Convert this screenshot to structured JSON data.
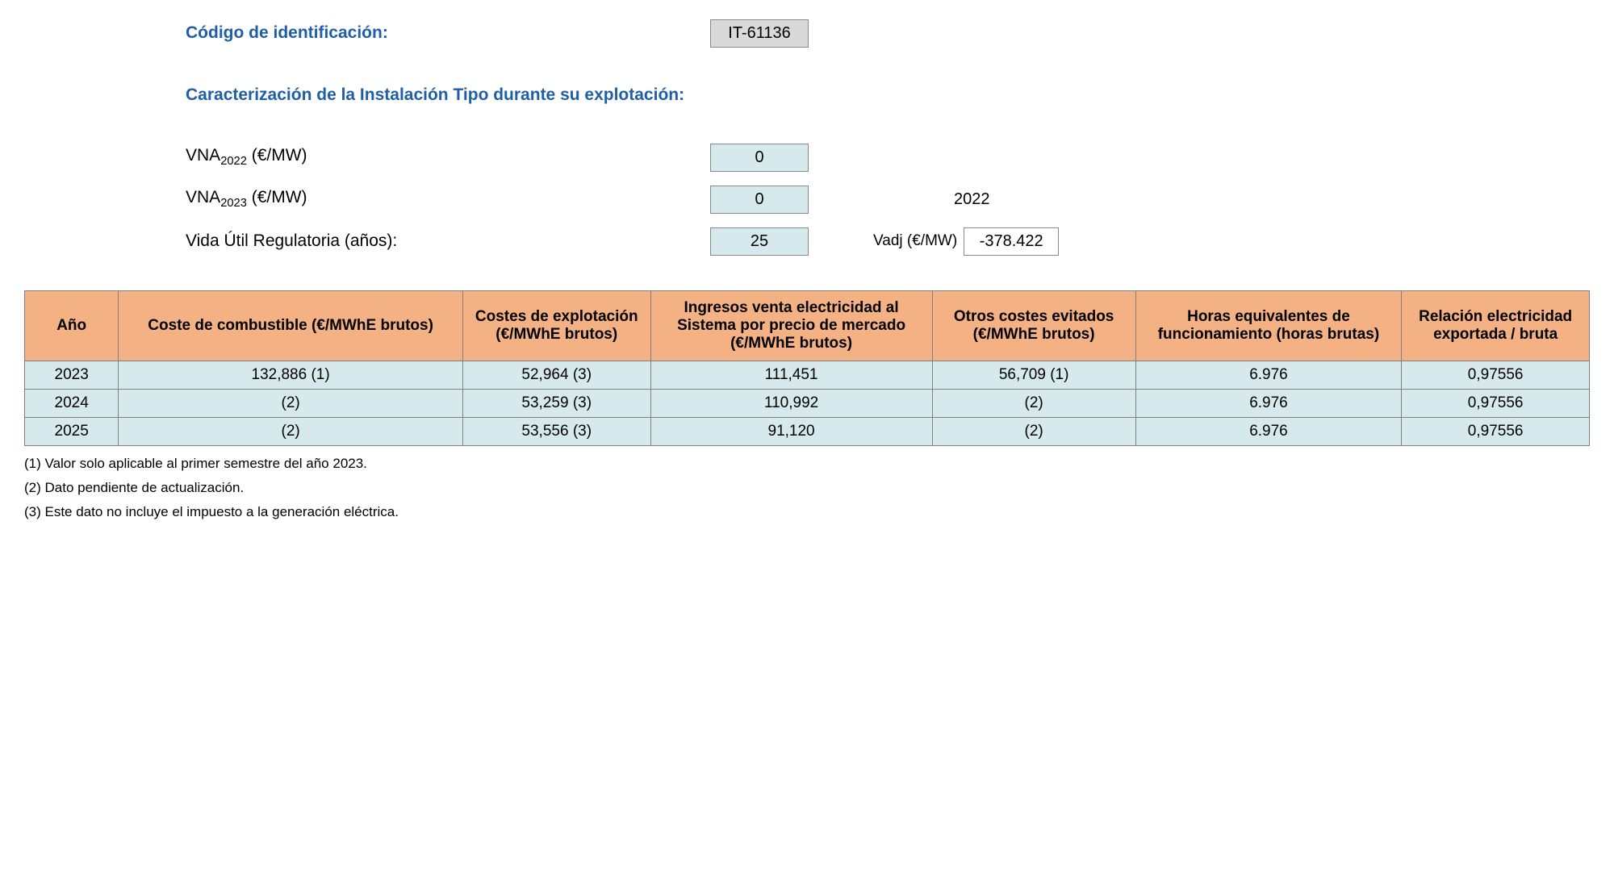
{
  "header": {
    "code_label": "Código de identificación:",
    "code_value": "IT-61136",
    "section_title": "Caracterización de la Instalación Tipo durante su explotación:",
    "vna2022_label_prefix": "VNA",
    "vna2022_sub": "2022",
    "vna_unit": " (€/MW)",
    "vna2022_value": "0",
    "vna2023_label_prefix": "VNA",
    "vna2023_sub": "2023",
    "vna2023_value": "0",
    "ref_year": "2022",
    "vida_label": "Vida Útil Regulatoria (años):",
    "vida_value": "25",
    "vadj_label": "Vadj (€/MW)",
    "vadj_value": "-378.422"
  },
  "table": {
    "columns": [
      "Año",
      "Coste de combustible (€/MWhE brutos)",
      "Costes de explotación (€/MWhE brutos)",
      "Ingresos venta electricidad al Sistema por precio de mercado (€/MWhE brutos)",
      "Otros costes evitados (€/MWhE brutos)",
      "Horas equivalentes de funcionamiento (horas brutas)",
      "Relación electricidad exportada / bruta"
    ],
    "col_widths": [
      "6%",
      "22%",
      "12%",
      "18%",
      "13%",
      "17%",
      "12%"
    ],
    "rows": [
      [
        "2023",
        "132,886 (1)",
        "52,964 (3)",
        "111,451",
        "56,709 (1)",
        "6.976",
        "0,97556"
      ],
      [
        "2024",
        "(2)",
        "53,259 (3)",
        "110,992",
        "(2)",
        "6.976",
        "0,97556"
      ],
      [
        "2025",
        "(2)",
        "53,556 (3)",
        "91,120",
        "(2)",
        "6.976",
        "0,97556"
      ]
    ],
    "header_bg": "#f4b183",
    "cell_bg": "#d6e9ed",
    "border_color": "#7f7f7f"
  },
  "footnotes": [
    "(1) Valor solo aplicable al primer semestre del año 2023.",
    "(2) Dato pendiente de actualización.",
    "(3) Este dato no incluye el impuesto a la generación eléctrica."
  ]
}
